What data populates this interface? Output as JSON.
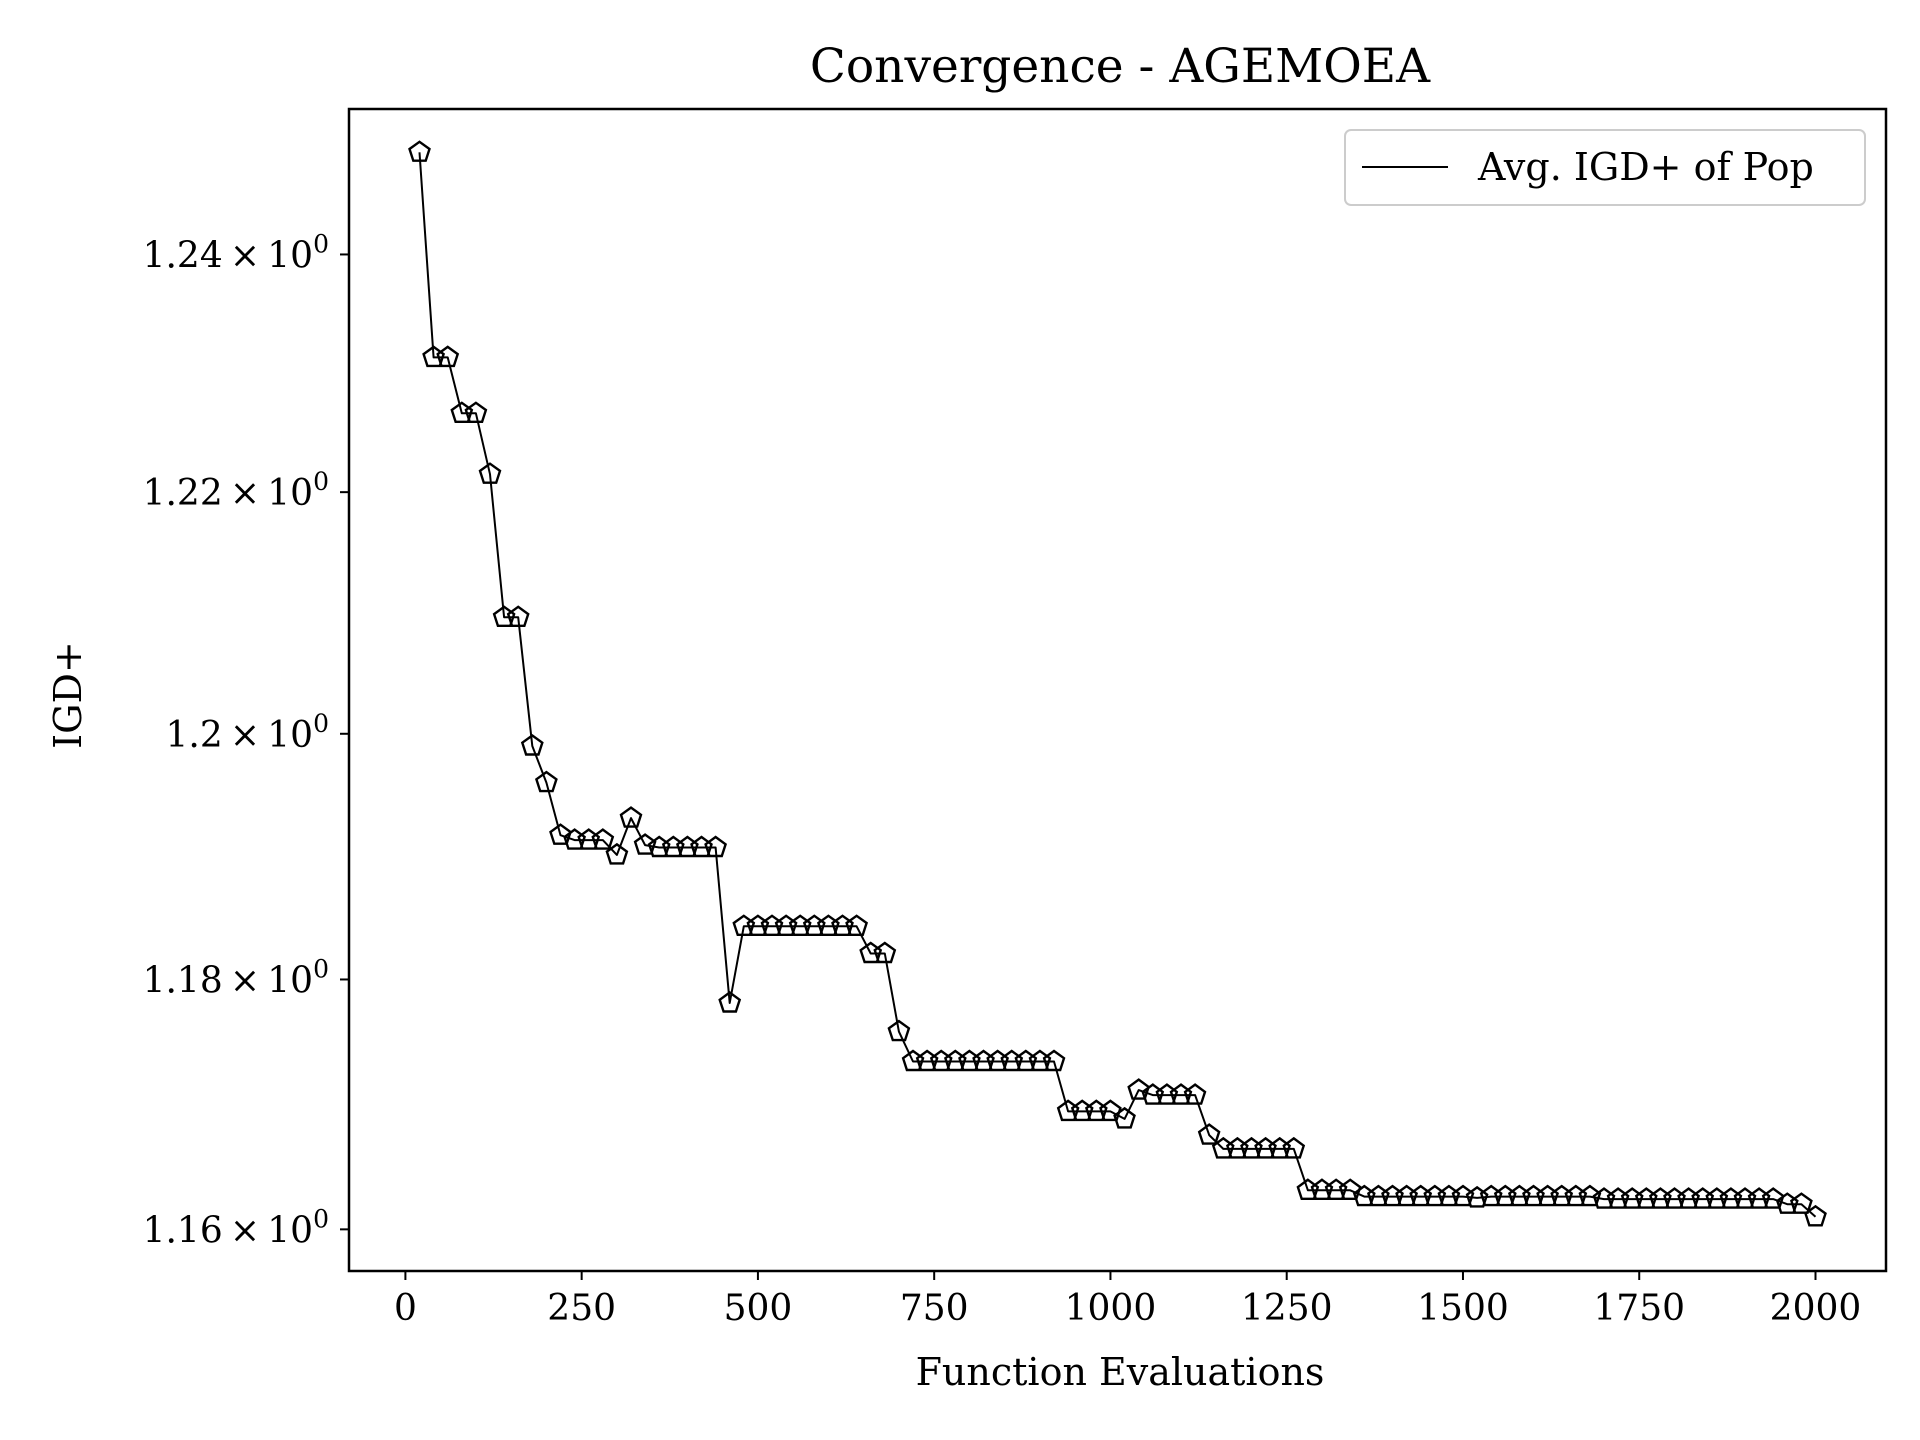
{
  "chart_data": {
    "type": "line",
    "title": "Convergence - AGEMOEA",
    "xlabel": "Function Evaluations",
    "ylabel": "IGD+",
    "y_scale": "log",
    "xlim": [
      -80,
      2100
    ],
    "ylim": [
      1.1567,
      1.2524
    ],
    "x_ticks": [
      0,
      250,
      500,
      750,
      1000,
      1250,
      1500,
      1750,
      2000
    ],
    "x_tick_labels": [
      "0",
      "250",
      "500",
      "750",
      "1000",
      "1250",
      "1500",
      "1750",
      "2000"
    ],
    "y_ticks": [
      {
        "value": 1.16,
        "mantissa": "1.16",
        "base": "10",
        "exp": "0"
      },
      {
        "value": 1.18,
        "mantissa": "1.18",
        "base": "10",
        "exp": "0"
      },
      {
        "value": 1.2,
        "mantissa": "1.2",
        "base": "10",
        "exp": "0"
      },
      {
        "value": 1.22,
        "mantissa": "1.22",
        "base": "10",
        "exp": "0"
      },
      {
        "value": 1.24,
        "mantissa": "1.24",
        "base": "10",
        "exp": "0"
      }
    ],
    "grid": false,
    "legend_position": "top-right",
    "marker": "pentagon",
    "line_color": "#000000",
    "series": [
      {
        "name": "Avg. IGD+ of Pop",
        "x": [
          20,
          40,
          60,
          80,
          100,
          120,
          140,
          160,
          180,
          200,
          220,
          240,
          260,
          280,
          300,
          320,
          340,
          360,
          380,
          400,
          420,
          440,
          460,
          480,
          500,
          520,
          540,
          560,
          580,
          600,
          620,
          640,
          660,
          680,
          700,
          720,
          740,
          760,
          780,
          800,
          820,
          840,
          860,
          880,
          900,
          920,
          940,
          960,
          980,
          1000,
          1020,
          1040,
          1060,
          1080,
          1100,
          1120,
          1140,
          1160,
          1180,
          1200,
          1220,
          1240,
          1260,
          1280,
          1300,
          1320,
          1340,
          1360,
          1380,
          1400,
          1420,
          1440,
          1460,
          1480,
          1500,
          1520,
          1540,
          1560,
          1580,
          1600,
          1620,
          1640,
          1660,
          1680,
          1700,
          1720,
          1740,
          1760,
          1780,
          1800,
          1820,
          1840,
          1860,
          1880,
          1900,
          1920,
          1940,
          1960,
          1980,
          2000
        ],
        "y": [
          1.2487,
          1.2313,
          1.2313,
          1.2266,
          1.2266,
          1.2215,
          1.2096,
          1.2096,
          1.199,
          1.196,
          1.1917,
          1.1913,
          1.1913,
          1.1913,
          1.1901,
          1.1931,
          1.1909,
          1.1907,
          1.1907,
          1.1907,
          1.1907,
          1.1907,
          1.1781,
          1.1843,
          1.1843,
          1.1843,
          1.1843,
          1.1843,
          1.1843,
          1.1843,
          1.1843,
          1.1843,
          1.1821,
          1.1821,
          1.1758,
          1.1734,
          1.1734,
          1.1734,
          1.1734,
          1.1734,
          1.1734,
          1.1734,
          1.1734,
          1.1734,
          1.1734,
          1.1734,
          1.1694,
          1.1694,
          1.1694,
          1.1694,
          1.1688,
          1.1711,
          1.1707,
          1.1707,
          1.1707,
          1.1707,
          1.1675,
          1.1664,
          1.1664,
          1.1664,
          1.1664,
          1.1664,
          1.1664,
          1.1631,
          1.1631,
          1.1631,
          1.1631,
          1.1626,
          1.1626,
          1.1626,
          1.1626,
          1.1626,
          1.1626,
          1.1626,
          1.1626,
          1.1625,
          1.1626,
          1.1626,
          1.1626,
          1.1626,
          1.1626,
          1.1626,
          1.1626,
          1.1626,
          1.1624,
          1.1624,
          1.1624,
          1.1624,
          1.1624,
          1.1624,
          1.1624,
          1.1624,
          1.1624,
          1.1624,
          1.1624,
          1.1624,
          1.1624,
          1.162,
          1.162,
          1.161
        ]
      }
    ]
  }
}
